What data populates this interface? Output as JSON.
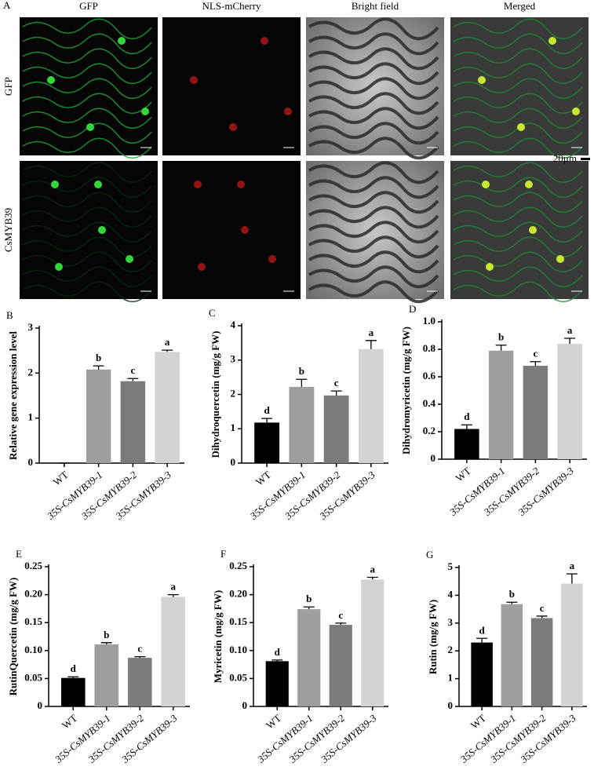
{
  "micrograph": {
    "panel_label": "A",
    "columns": [
      "GFP",
      "NLS-mCherry",
      "Bright field",
      "Merged"
    ],
    "rows": [
      "GFP",
      "CsMYB39"
    ],
    "scale_bar": "20μm"
  },
  "chart_data": [
    {
      "type": "bar",
      "panel_label": "B",
      "y_label": "Relative gene expression level",
      "categories": [
        "WT",
        "35S-CsMYB39-1",
        "35S-CsMYB39-2",
        "35S-CsMYB39-3"
      ],
      "values": [
        0,
        2.08,
        1.82,
        2.47
      ],
      "errors": [
        0,
        0.08,
        0.06,
        0.04
      ],
      "annotations": [
        null,
        "b",
        "c",
        "a"
      ],
      "colors": [
        "#000000",
        "#9e9e9e",
        "#7b7b7b",
        "#d3d3d3"
      ],
      "ylim": [
        0,
        3
      ],
      "yticks": [
        0,
        1,
        2,
        3
      ]
    },
    {
      "type": "bar",
      "panel_label": "C",
      "y_label": "Dihydroquercetin (mg/g FW)",
      "categories": [
        "WT",
        "35S-CsMYB39-1",
        "35S-CsMYB39-2",
        "35S-CsMYB39-3"
      ],
      "values": [
        1.18,
        2.22,
        1.97,
        3.32
      ],
      "errors": [
        0.12,
        0.22,
        0.13,
        0.25
      ],
      "annotations": [
        "d",
        "b",
        "c",
        "a"
      ],
      "colors": [
        "#000000",
        "#9e9e9e",
        "#7b7b7b",
        "#d3d3d3"
      ],
      "ylim": [
        0,
        4
      ],
      "yticks": [
        0,
        1,
        2,
        3,
        4
      ]
    },
    {
      "type": "bar",
      "panel_label": "D",
      "y_label": "Dihydromyricetin (mg/g FW)",
      "categories": [
        "WT",
        "35S-CsMYB39-1",
        "35S-CsMYB39-2",
        "35S-CsMYB39-3"
      ],
      "values": [
        0.22,
        0.79,
        0.68,
        0.84
      ],
      "errors": [
        0.03,
        0.04,
        0.03,
        0.04
      ],
      "annotations": [
        "d",
        "b",
        "c",
        "a"
      ],
      "colors": [
        "#000000",
        "#9e9e9e",
        "#7b7b7b",
        "#d3d3d3"
      ],
      "ylim": [
        0,
        1
      ],
      "yticks": [
        0,
        0.2,
        0.4,
        0.6,
        0.8,
        {
          "value": 1,
          "label": "1.0"
        }
      ]
    },
    {
      "type": "bar",
      "panel_label": "E",
      "y_label": "RutinQuercetin (mg/g FW)",
      "categories": [
        "WT",
        "35S-CsMYB39-1",
        "35S-CsMYB39-2",
        "35S-CsMYB39-3"
      ],
      "values": [
        0.051,
        0.111,
        0.087,
        0.196
      ],
      "errors": [
        0.002,
        0.003,
        0.002,
        0.004
      ],
      "annotations": [
        "d",
        "b",
        "c",
        "a"
      ],
      "colors": [
        "#000000",
        "#9e9e9e",
        "#7b7b7b",
        "#d3d3d3"
      ],
      "ylim": [
        0,
        0.25
      ],
      "yticks": [
        0,
        0.05,
        {
          "value": 0.1,
          "label": "0.10"
        },
        0.15,
        {
          "value": 0.2,
          "label": "0.20"
        },
        0.25
      ]
    },
    {
      "type": "bar",
      "panel_label": "F",
      "y_label": "Myricetin (mg/g FW)",
      "categories": [
        "WT",
        "35S-CsMYB39-1",
        "35S-CsMYB39-2",
        "35S-CsMYB39-3"
      ],
      "values": [
        0.081,
        0.174,
        0.146,
        0.227
      ],
      "errors": [
        0.002,
        0.004,
        0.003,
        0.004
      ],
      "annotations": [
        "d",
        "b",
        "c",
        "a"
      ],
      "colors": [
        "#000000",
        "#9e9e9e",
        "#7b7b7b",
        "#d3d3d3"
      ],
      "ylim": [
        0,
        0.25
      ],
      "yticks": [
        0,
        0.05,
        {
          "value": 0.1,
          "label": "0.10"
        },
        0.15,
        {
          "value": 0.2,
          "label": "0.20"
        },
        0.25
      ]
    },
    {
      "type": "bar",
      "panel_label": "G",
      "y_label": "Rutin (mg/g FW)",
      "categories": [
        "WT",
        "35S-CsMYB39-1",
        "35S-CsMYB39-2",
        "35S-CsMYB39-3"
      ],
      "values": [
        2.3,
        3.68,
        3.18,
        4.42
      ],
      "errors": [
        0.15,
        0.07,
        0.07,
        0.35
      ],
      "annotations": [
        "d",
        "b",
        "c",
        "a"
      ],
      "colors": [
        "#000000",
        "#9e9e9e",
        "#7b7b7b",
        "#d3d3d3"
      ],
      "ylim": [
        0,
        5
      ],
      "yticks": [
        0,
        1,
        2,
        3,
        4,
        5
      ]
    }
  ]
}
